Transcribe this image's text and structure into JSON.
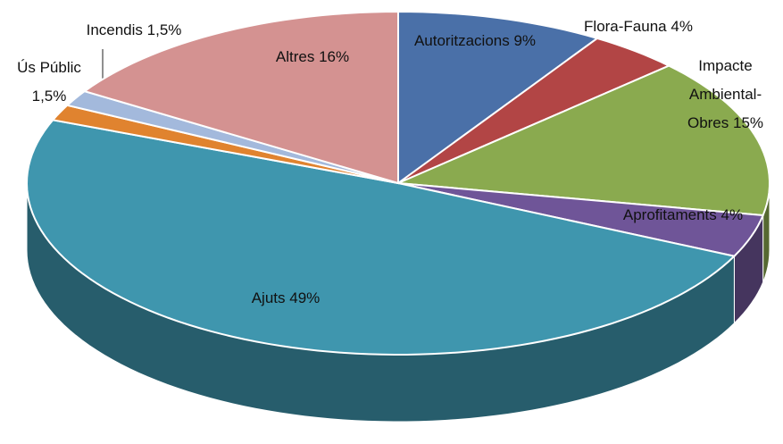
{
  "chart_data": {
    "type": "pie3d",
    "categories": [
      "Autoritzacions",
      "Flora-Fauna",
      "Impacte Ambiental-Obres",
      "Aprofitaments",
      "Ajuts",
      "Ús Públic",
      "Incendis",
      "Altres"
    ],
    "values": [
      9,
      4,
      15,
      4,
      49,
      1.5,
      1.5,
      16
    ],
    "value_labels": [
      "9%",
      "4%",
      "15%",
      "4%",
      "49%",
      "1,5%",
      "1,5%",
      "16%"
    ],
    "colors": [
      "#4a70a8",
      "#b24545",
      "#8aaa4f",
      "#6f5598",
      "#3f96ae",
      "#e0832f",
      "#a3b9dc",
      "#d49291"
    ]
  }
}
